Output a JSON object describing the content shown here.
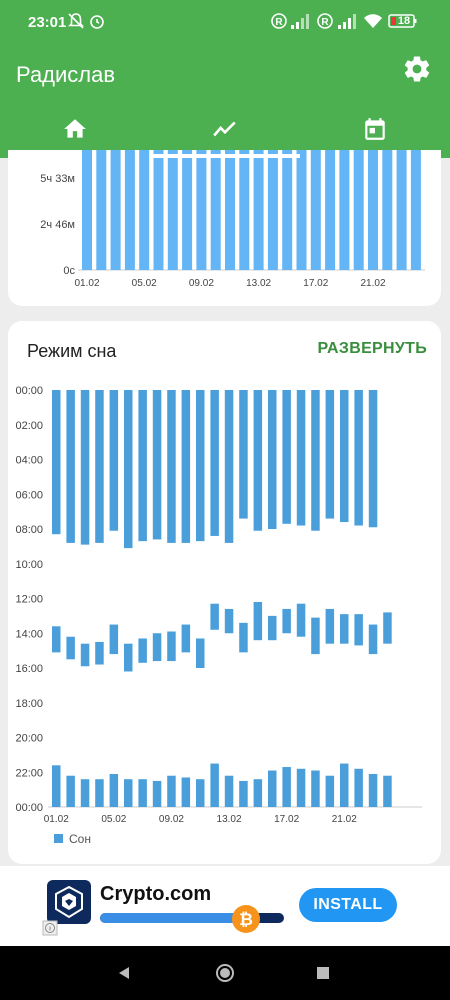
{
  "status": {
    "time": "23:01",
    "battery": "18"
  },
  "appbar": {
    "title": "Радислав"
  },
  "tabs": [
    {
      "icon": "home-icon"
    },
    {
      "icon": "trend-icon"
    },
    {
      "icon": "calendar-icon"
    }
  ],
  "top_card": {
    "chart_data": {
      "type": "bar",
      "y_ticks": [
        "0с",
        "2ч 46м",
        "5ч 33м"
      ],
      "x_ticks": [
        "01.02",
        "05.02",
        "09.02",
        "13.02",
        "17.02",
        "21.02"
      ],
      "color": "#64b5f6"
    }
  },
  "sleep_card": {
    "title": "Режим сна",
    "expand_label": "РАЗВЕРНУТЬ",
    "legend_label": "Сон",
    "chart_data": {
      "type": "bar",
      "title": "Режим сна",
      "color": "#4a9fdb",
      "y_ticks": [
        "00:00",
        "02:00",
        "04:00",
        "06:00",
        "08:00",
        "10:00",
        "12:00",
        "14:00",
        "16:00",
        "18:00",
        "20:00",
        "22:00",
        "00:00"
      ],
      "x_ticks": [
        "01.02",
        "05.02",
        "09.02",
        "13.02",
        "17.02",
        "21.02"
      ],
      "series": [
        {
          "name": "Сон"
        }
      ],
      "days": [
        "01.02",
        "02.02",
        "03.02",
        "04.02",
        "05.02",
        "06.02",
        "07.02",
        "08.02",
        "09.02",
        "10.02",
        "11.02",
        "12.02",
        "13.02",
        "14.02",
        "15.02",
        "16.02",
        "17.02",
        "18.02",
        "19.02",
        "20.02",
        "21.02",
        "22.02",
        "23.02",
        "24.02"
      ],
      "night_sleep_end": [
        8.3,
        8.8,
        8.9,
        8.8,
        8.1,
        9.1,
        8.7,
        8.6,
        8.8,
        8.8,
        8.7,
        8.4,
        8.8,
        7.4,
        8.1,
        8.0,
        7.7,
        7.8,
        8.1,
        7.4,
        7.6,
        7.8,
        7.9
      ],
      "day_sleep": [
        [
          13.6,
          15.1
        ],
        [
          14.2,
          15.5
        ],
        [
          14.6,
          15.9
        ],
        [
          14.5,
          15.8
        ],
        [
          13.5,
          15.2
        ],
        [
          14.6,
          16.2
        ],
        [
          14.3,
          15.7
        ],
        [
          14.0,
          15.6
        ],
        [
          13.9,
          15.6
        ],
        [
          13.5,
          15.1
        ],
        [
          14.3,
          16.0
        ],
        [
          12.3,
          13.8
        ],
        [
          12.6,
          14.0
        ],
        [
          13.4,
          15.1
        ],
        [
          12.2,
          14.4
        ],
        [
          13.0,
          14.4
        ],
        [
          12.6,
          14.0
        ],
        [
          12.3,
          14.2
        ],
        [
          13.1,
          15.2
        ],
        [
          12.6,
          14.6
        ],
        [
          12.9,
          14.6
        ],
        [
          12.9,
          14.7
        ],
        [
          13.5,
          15.2
        ],
        [
          12.8,
          14.6
        ]
      ],
      "evening_sleep_start": [
        21.6,
        22.2,
        22.4,
        22.4,
        22.1,
        22.4,
        22.4,
        22.5,
        22.2,
        22.3,
        22.4,
        21.5,
        22.2,
        22.5,
        22.4,
        21.9,
        21.7,
        21.8,
        21.9,
        22.2,
        21.5,
        21.8,
        22.1,
        22.2
      ]
    }
  },
  "ad": {
    "app_name": "Crypto.com",
    "install_label": "INSTALL",
    "progress": 0.82
  }
}
